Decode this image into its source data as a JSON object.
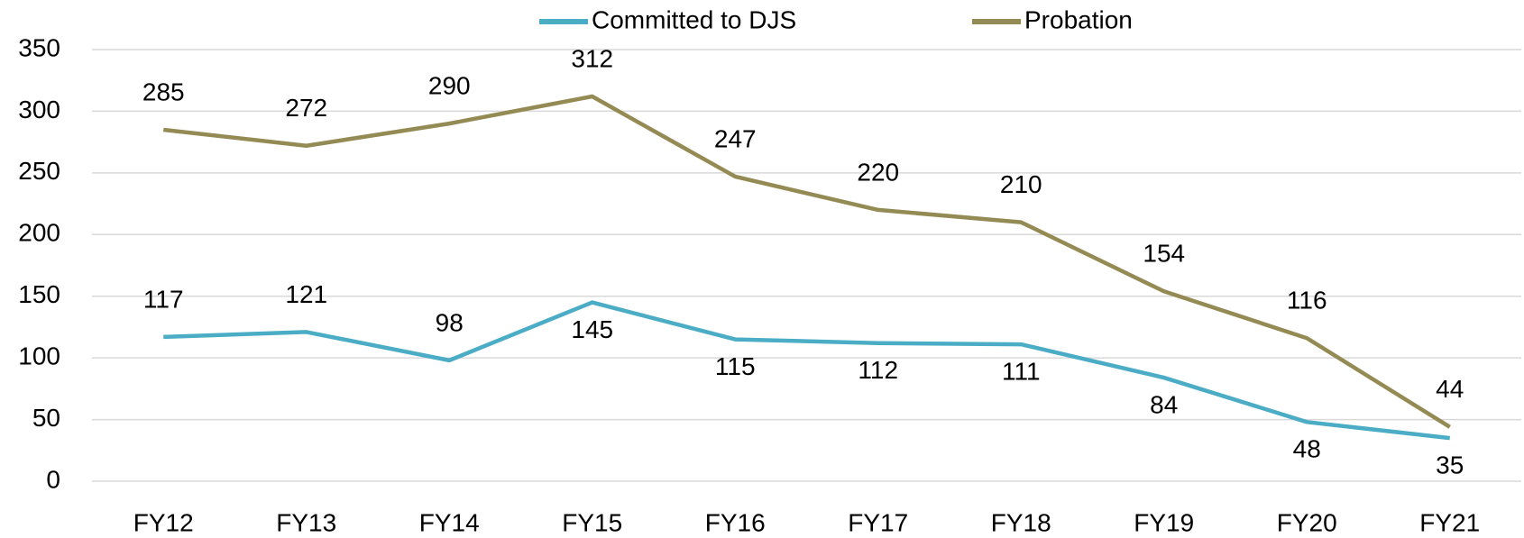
{
  "chart_data": {
    "type": "line",
    "categories": [
      "FY12",
      "FY13",
      "FY14",
      "FY15",
      "FY16",
      "FY17",
      "FY18",
      "FY19",
      "FY20",
      "FY21"
    ],
    "series": [
      {
        "name": "Committed to DJS",
        "color": "#4bacc6",
        "values": [
          117,
          121,
          98,
          145,
          115,
          112,
          111,
          84,
          48,
          35
        ]
      },
      {
        "name": "Probation",
        "color": "#948a54",
        "values": [
          285,
          272,
          290,
          312,
          247,
          220,
          210,
          154,
          116,
          44
        ]
      }
    ],
    "ylim": [
      0,
      350
    ],
    "yticks": [
      0,
      50,
      100,
      150,
      200,
      250,
      300,
      350
    ],
    "grid": true,
    "legend": "top"
  }
}
